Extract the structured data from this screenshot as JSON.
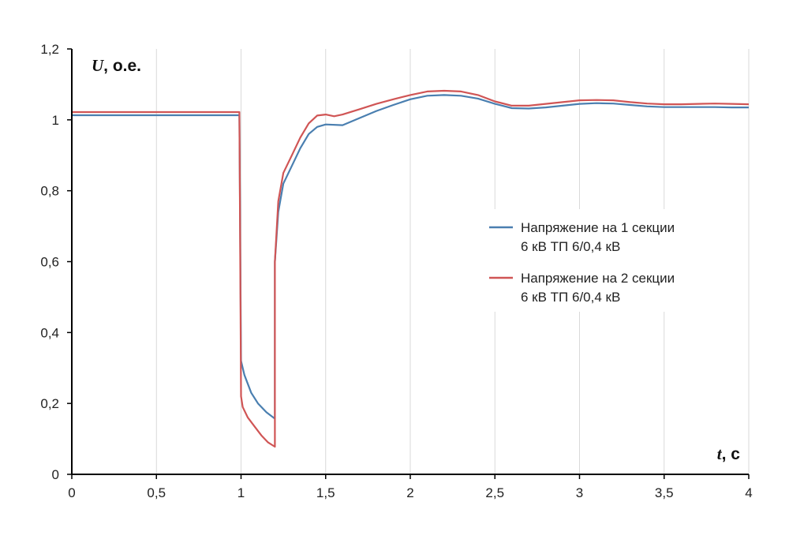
{
  "chart_data": {
    "type": "line",
    "x_axis": {
      "var": "t",
      "unit": ", с",
      "range": [
        0,
        4
      ],
      "ticks": [
        0,
        0.5,
        1,
        1.5,
        2,
        2.5,
        3,
        3.5,
        4
      ],
      "tick_labels": [
        "0",
        "0,5",
        "1",
        "1,5",
        "2",
        "2,5",
        "3",
        "3,5",
        "4"
      ]
    },
    "y_axis": {
      "var": "U",
      "unit": ", о.е.",
      "range": [
        0,
        1.2
      ],
      "ticks": [
        0,
        0.2,
        0.4,
        0.6,
        0.8,
        1,
        1.2
      ],
      "tick_labels": [
        "0",
        "0,2",
        "0,4",
        "0,6",
        "0,8",
        "1",
        "1,2"
      ]
    },
    "grid": {
      "vertical": true,
      "horizontal": false
    },
    "legend": {
      "position": "right"
    },
    "series": [
      {
        "name_lines": [
          "Напряжение на 1 секции",
          "6 кВ ТП 6/0,4 кВ"
        ],
        "color": "#4a7fb0",
        "points": [
          [
            0,
            1.013
          ],
          [
            0.99,
            1.013
          ],
          [
            1.0,
            0.32
          ],
          [
            1.02,
            0.28
          ],
          [
            1.06,
            0.23
          ],
          [
            1.1,
            0.2
          ],
          [
            1.15,
            0.175
          ],
          [
            1.2,
            0.157
          ],
          [
            1.2,
            0.6
          ],
          [
            1.22,
            0.74
          ],
          [
            1.25,
            0.82
          ],
          [
            1.3,
            0.87
          ],
          [
            1.35,
            0.92
          ],
          [
            1.4,
            0.96
          ],
          [
            1.45,
            0.98
          ],
          [
            1.5,
            0.987
          ],
          [
            1.6,
            0.985
          ],
          [
            1.7,
            1.005
          ],
          [
            1.8,
            1.025
          ],
          [
            1.9,
            1.042
          ],
          [
            2.0,
            1.058
          ],
          [
            2.1,
            1.068
          ],
          [
            2.2,
            1.07
          ],
          [
            2.3,
            1.068
          ],
          [
            2.4,
            1.06
          ],
          [
            2.5,
            1.045
          ],
          [
            2.6,
            1.033
          ],
          [
            2.7,
            1.032
          ],
          [
            2.8,
            1.035
          ],
          [
            2.9,
            1.04
          ],
          [
            3.0,
            1.045
          ],
          [
            3.1,
            1.047
          ],
          [
            3.2,
            1.046
          ],
          [
            3.3,
            1.042
          ],
          [
            3.4,
            1.038
          ],
          [
            3.5,
            1.036
          ],
          [
            3.6,
            1.036
          ],
          [
            3.7,
            1.036
          ],
          [
            3.8,
            1.036
          ],
          [
            3.9,
            1.035
          ],
          [
            4.0,
            1.035
          ]
        ]
      },
      {
        "name_lines": [
          "Напряжение на 2 секции",
          "6 кВ ТП 6/0,4 кВ"
        ],
        "color": "#d05555",
        "points": [
          [
            0,
            1.022
          ],
          [
            0.99,
            1.022
          ],
          [
            1.0,
            0.22
          ],
          [
            1.01,
            0.19
          ],
          [
            1.04,
            0.16
          ],
          [
            1.08,
            0.135
          ],
          [
            1.12,
            0.11
          ],
          [
            1.16,
            0.09
          ],
          [
            1.2,
            0.078
          ],
          [
            1.2,
            0.6
          ],
          [
            1.22,
            0.77
          ],
          [
            1.25,
            0.85
          ],
          [
            1.3,
            0.9
          ],
          [
            1.35,
            0.95
          ],
          [
            1.4,
            0.99
          ],
          [
            1.45,
            1.012
          ],
          [
            1.5,
            1.015
          ],
          [
            1.55,
            1.01
          ],
          [
            1.6,
            1.015
          ],
          [
            1.7,
            1.03
          ],
          [
            1.8,
            1.045
          ],
          [
            1.9,
            1.058
          ],
          [
            2.0,
            1.07
          ],
          [
            2.1,
            1.08
          ],
          [
            2.2,
            1.082
          ],
          [
            2.3,
            1.08
          ],
          [
            2.4,
            1.07
          ],
          [
            2.5,
            1.052
          ],
          [
            2.6,
            1.04
          ],
          [
            2.7,
            1.04
          ],
          [
            2.8,
            1.045
          ],
          [
            2.9,
            1.05
          ],
          [
            3.0,
            1.055
          ],
          [
            3.1,
            1.056
          ],
          [
            3.2,
            1.055
          ],
          [
            3.3,
            1.05
          ],
          [
            3.4,
            1.046
          ],
          [
            3.5,
            1.044
          ],
          [
            3.6,
            1.044
          ],
          [
            3.7,
            1.045
          ],
          [
            3.8,
            1.046
          ],
          [
            3.9,
            1.045
          ],
          [
            4.0,
            1.044
          ]
        ]
      }
    ]
  }
}
